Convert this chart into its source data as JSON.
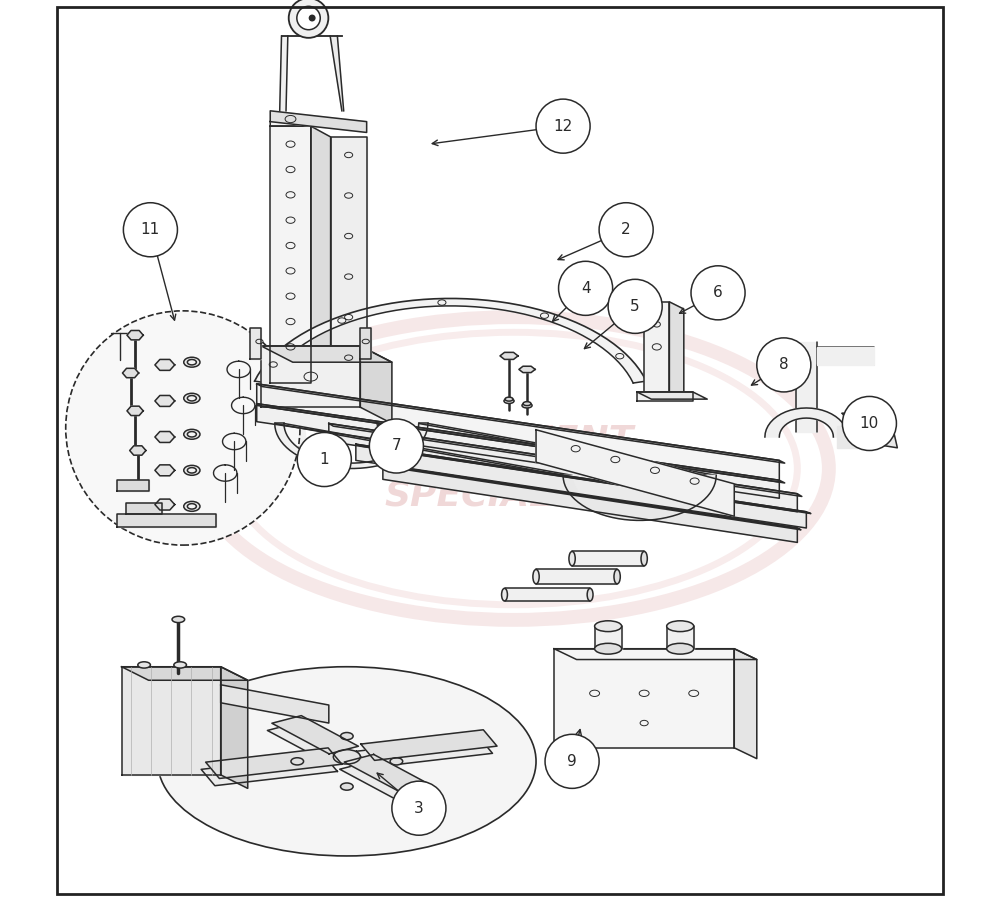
{
  "background_color": "#ffffff",
  "line_color": "#2a2a2a",
  "lw_main": 1.1,
  "lw_thin": 0.7,
  "lw_thick": 1.5,
  "fig_width": 10.0,
  "fig_height": 9.01,
  "dpi": 100,
  "watermark_color": "#d08080",
  "watermark_alpha": 0.3,
  "callout_r": 0.03,
  "callout_fontsize": 11,
  "callouts": {
    "1": [
      0.305,
      0.49,
      0.32,
      0.505
    ],
    "2": [
      0.64,
      0.745,
      0.56,
      0.71
    ],
    "3": [
      0.41,
      0.103,
      0.36,
      0.145
    ],
    "4": [
      0.595,
      0.68,
      0.555,
      0.64
    ],
    "5": [
      0.65,
      0.66,
      0.59,
      0.61
    ],
    "6": [
      0.742,
      0.675,
      0.695,
      0.65
    ],
    "7": [
      0.385,
      0.505,
      0.36,
      0.535
    ],
    "8": [
      0.815,
      0.595,
      0.775,
      0.57
    ],
    "9": [
      0.58,
      0.155,
      0.59,
      0.195
    ],
    "10": [
      0.91,
      0.53,
      0.875,
      0.543
    ],
    "11": [
      0.112,
      0.745,
      0.14,
      0.64
    ],
    "12": [
      0.57,
      0.86,
      0.42,
      0.84
    ]
  }
}
